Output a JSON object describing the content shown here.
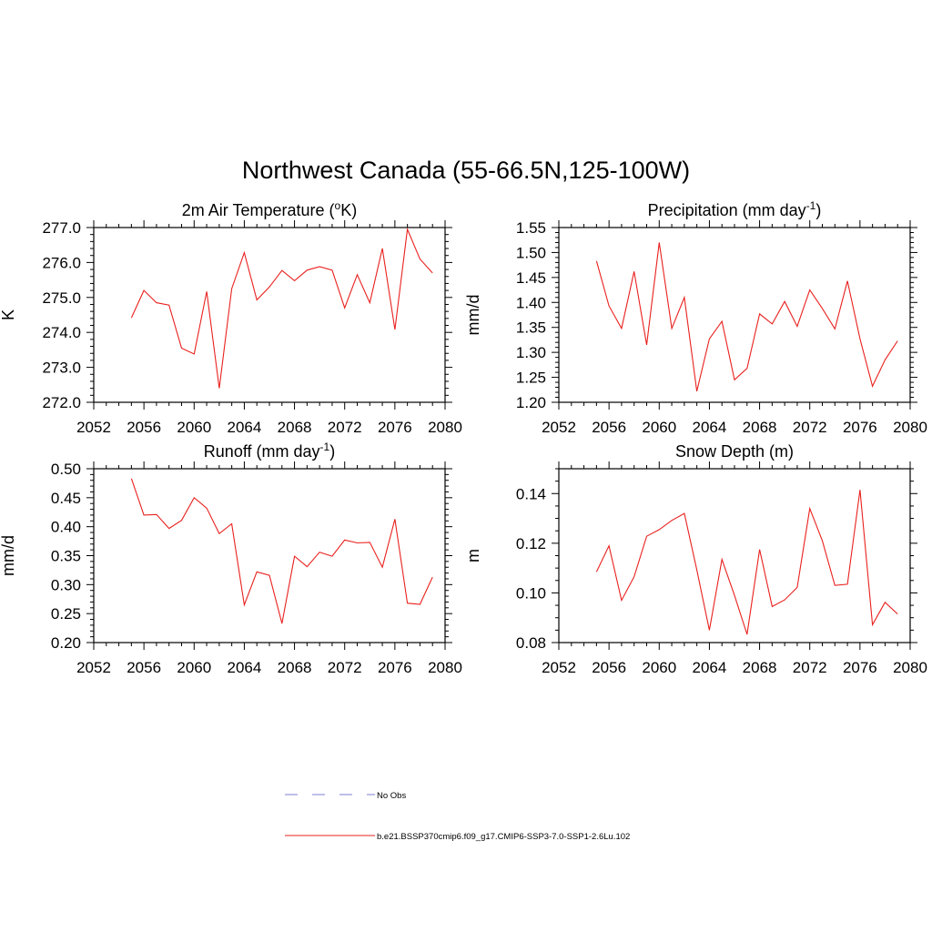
{
  "figure": {
    "title": "Northwest Canada (55-66.5N,125-100W)",
    "line_color": "#e8211e",
    "obs_color": "#9999dd"
  },
  "legend": {
    "items": [
      {
        "label": "No Obs",
        "style": "dashed"
      },
      {
        "label": "b.e21.BSSP370cmip6.f09_g17.CMIP6-SSP3-7.0-SSP1-2.6Lu.102",
        "style": "solid"
      }
    ]
  },
  "chart_data": [
    {
      "type": "line",
      "title": "2m Air Temperature (",
      "title_sup": "o",
      "title_after": "K)",
      "ylabel": "K",
      "xlim": [
        2052,
        2080
      ],
      "ylim": [
        272.0,
        277.0
      ],
      "xticks": [
        2052,
        2056,
        2060,
        2064,
        2068,
        2072,
        2076,
        2080
      ],
      "yticks": [
        "272.0",
        "273.0",
        "274.0",
        "275.0",
        "276.0",
        "277.0"
      ],
      "series": [
        {
          "x": [
            2055,
            2056,
            2057,
            2058,
            2059,
            2060,
            2061,
            2062,
            2063,
            2064,
            2065,
            2066,
            2067,
            2068,
            2069,
            2070,
            2071,
            2072,
            2073,
            2074,
            2075,
            2076,
            2077,
            2078,
            2079
          ],
          "values": [
            274.42,
            275.2,
            274.85,
            274.78,
            273.55,
            273.38,
            275.17,
            272.4,
            275.25,
            276.28,
            274.93,
            275.3,
            275.77,
            275.48,
            275.78,
            275.88,
            275.78,
            274.7,
            275.65,
            274.85,
            276.4,
            274.08,
            276.95,
            276.1,
            275.7
          ]
        }
      ]
    },
    {
      "type": "line",
      "title": "Precipitation (mm day",
      "title_sup": "-1",
      "title_after": ")",
      "ylabel": "mm/d",
      "xlim": [
        2052,
        2080
      ],
      "ylim": [
        1.2,
        1.55
      ],
      "xticks": [
        2052,
        2056,
        2060,
        2064,
        2068,
        2072,
        2076,
        2080
      ],
      "yticks": [
        "1.20",
        "1.25",
        "1.30",
        "1.35",
        "1.40",
        "1.45",
        "1.50",
        "1.55"
      ],
      "series": [
        {
          "x": [
            2055,
            2056,
            2057,
            2058,
            2059,
            2060,
            2061,
            2062,
            2063,
            2064,
            2065,
            2066,
            2067,
            2068,
            2069,
            2070,
            2071,
            2072,
            2073,
            2074,
            2075,
            2076,
            2077,
            2078,
            2079
          ],
          "values": [
            1.483,
            1.393,
            1.348,
            1.462,
            1.315,
            1.52,
            1.348,
            1.41,
            1.222,
            1.327,
            1.362,
            1.245,
            1.268,
            1.377,
            1.357,
            1.402,
            1.352,
            1.425,
            1.388,
            1.347,
            1.443,
            1.327,
            1.232,
            1.285,
            1.323
          ]
        }
      ]
    },
    {
      "type": "line",
      "title": "Runoff (mm day",
      "title_sup": "-1",
      "title_after": ")",
      "ylabel": "mm/d",
      "xlim": [
        2052,
        2080
      ],
      "ylim": [
        0.2,
        0.5
      ],
      "xticks": [
        2052,
        2056,
        2060,
        2064,
        2068,
        2072,
        2076,
        2080
      ],
      "yticks": [
        "0.20",
        "0.25",
        "0.30",
        "0.35",
        "0.40",
        "0.45",
        "0.50"
      ],
      "series": [
        {
          "x": [
            2055,
            2056,
            2057,
            2058,
            2059,
            2060,
            2061,
            2062,
            2063,
            2064,
            2065,
            2066,
            2067,
            2068,
            2069,
            2070,
            2071,
            2072,
            2073,
            2074,
            2075,
            2076,
            2077,
            2078,
            2079
          ],
          "values": [
            0.483,
            0.42,
            0.421,
            0.397,
            0.411,
            0.45,
            0.432,
            0.388,
            0.405,
            0.265,
            0.322,
            0.316,
            0.233,
            0.349,
            0.331,
            0.356,
            0.349,
            0.377,
            0.372,
            0.373,
            0.33,
            0.413,
            0.268,
            0.266,
            0.313
          ]
        }
      ]
    },
    {
      "type": "line",
      "title": "Snow Depth (m)",
      "title_sup": "",
      "title_after": "",
      "ylabel": "m",
      "xlim": [
        2052,
        2080
      ],
      "ylim": [
        0.08,
        0.15
      ],
      "xticks": [
        2052,
        2056,
        2060,
        2064,
        2068,
        2072,
        2076,
        2080
      ],
      "yticks": [
        "0.08",
        "0.10",
        "0.12",
        "0.14"
      ],
      "series": [
        {
          "x": [
            2055,
            2056,
            2057,
            2058,
            2059,
            2060,
            2061,
            2062,
            2063,
            2064,
            2065,
            2066,
            2067,
            2068,
            2069,
            2070,
            2071,
            2072,
            2073,
            2074,
            2075,
            2076,
            2077,
            2078,
            2079
          ],
          "values": [
            0.1085,
            0.119,
            0.097,
            0.1065,
            0.1228,
            0.1255,
            0.1292,
            0.132,
            0.1093,
            0.085,
            0.1135,
            0.099,
            0.0833,
            0.1175,
            0.0945,
            0.0972,
            0.1022,
            0.134,
            0.121,
            0.103,
            0.1035,
            0.1415,
            0.0872,
            0.0962,
            0.0915
          ]
        }
      ]
    }
  ]
}
